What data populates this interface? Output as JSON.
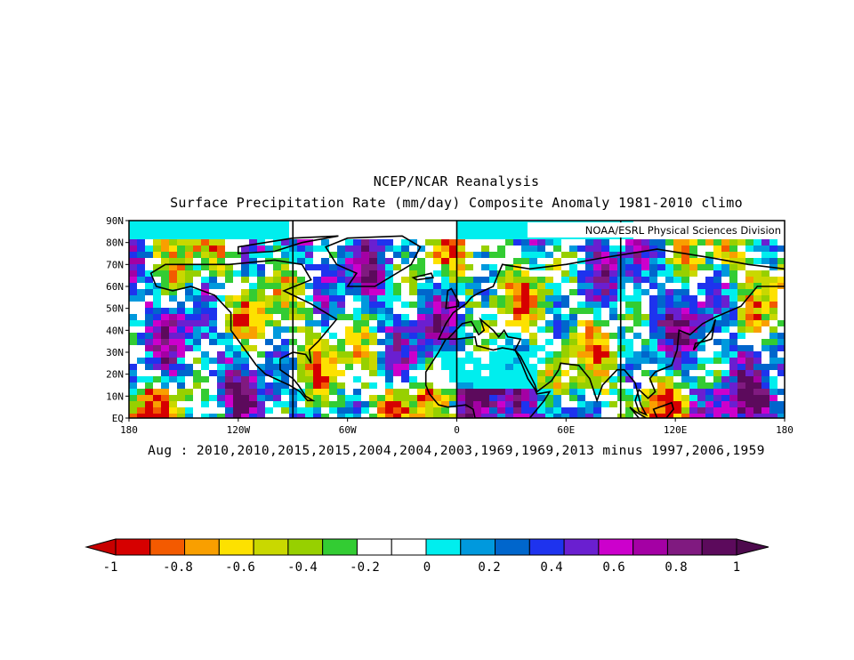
{
  "title_line1": "NCEP/NCAR Reanalysis",
  "title_line2": "Surface Precipitation Rate (mm/day) Composite Anomaly 1981-2010 climo",
  "credit": "NOAA/ESRL Physical Sciences Division",
  "composite_label": "Aug : 2010,2010,2015,2015,2004,2004,2003,1969,1969,2013 minus 1997,2006,1959",
  "map": {
    "projection": "cylindrical equidistant",
    "lon_range": [
      -180,
      180
    ],
    "lat_range": [
      0,
      90
    ],
    "lat_ticks": [
      "EQ",
      "10N",
      "20N",
      "30N",
      "40N",
      "50N",
      "60N",
      "70N",
      "80N",
      "90N"
    ],
    "lon_ticks": [
      "180",
      "120W",
      "60W",
      "0",
      "60E",
      "120E",
      "180"
    ],
    "reference_lines_lon": [
      -90,
      0,
      90
    ]
  },
  "colorbar": {
    "labels": [
      "-1",
      "-0.8",
      "-0.6",
      "-0.4",
      "-0.2",
      "0",
      "0.2",
      "0.4",
      "0.6",
      "0.8",
      "1"
    ],
    "colors": [
      "#d60000",
      "#f35a00",
      "#f99f00",
      "#fde100",
      "#c9d800",
      "#97d000",
      "#33cc33",
      "#ffffff",
      "#ffffff",
      "#00eeee",
      "#0099dd",
      "#0066cc",
      "#1e33ee",
      "#6a1fd0",
      "#cc00cc",
      "#a400a4",
      "#801a80",
      "#5c0a5c"
    ],
    "under_color": "#c80000",
    "over_color": "#4d0a4d"
  }
}
